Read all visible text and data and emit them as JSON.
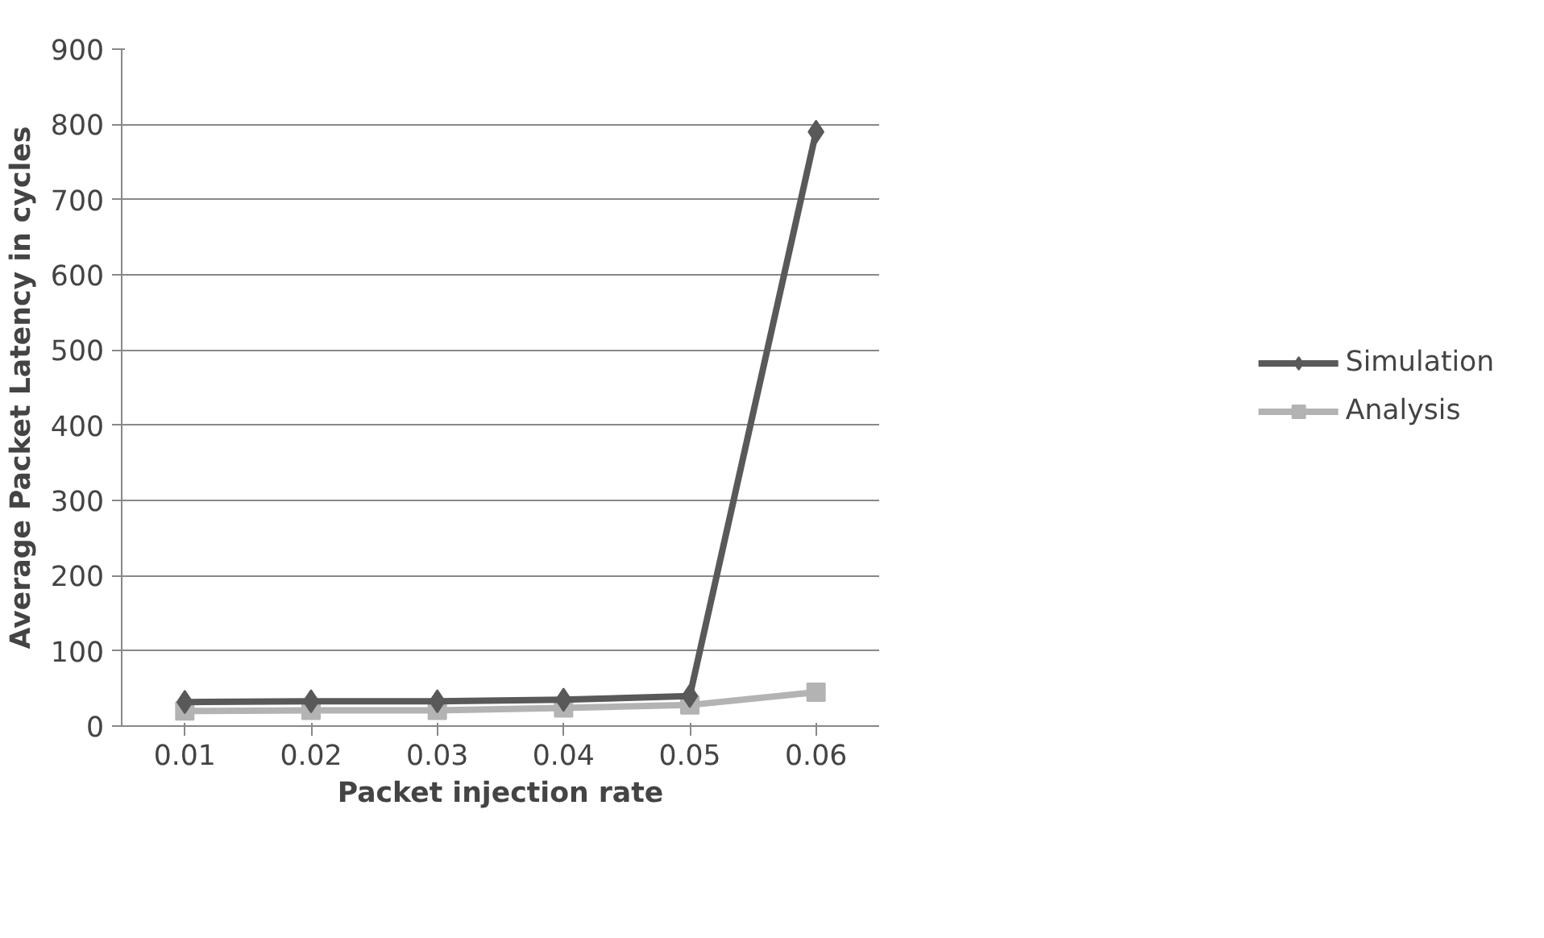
{
  "chart_data": {
    "type": "line",
    "xlabel": "Packet injection rate",
    "ylabel": "Average Packet Latency in cycles",
    "categories": [
      "0.01",
      "0.02",
      "0.03",
      "0.04",
      "0.05",
      "0.06"
    ],
    "series": [
      {
        "name": "Simulation",
        "color": "#595959",
        "marker": "diamond",
        "values": [
          32,
          33,
          33,
          35,
          40,
          790
        ]
      },
      {
        "name": "Analysis",
        "color": "#b3b3b3",
        "marker": "square",
        "values": [
          20,
          21,
          21,
          24,
          28,
          45
        ]
      }
    ],
    "ylim": [
      0,
      900
    ],
    "yticks": [
      0,
      100,
      200,
      300,
      400,
      500,
      600,
      700,
      800,
      900
    ],
    "grid": "y",
    "legend": "right",
    "line_style": "solid"
  }
}
